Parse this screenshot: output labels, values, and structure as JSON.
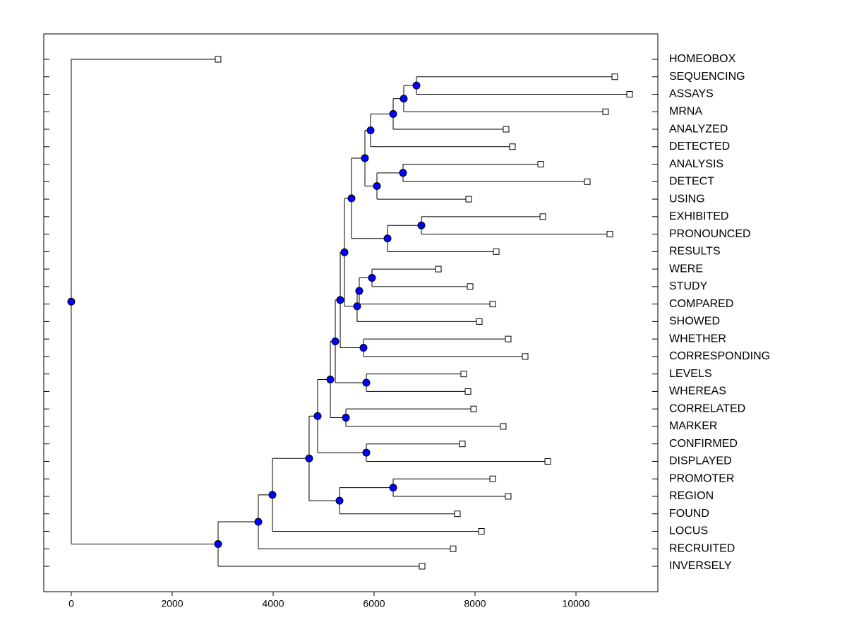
{
  "chart_data": {
    "type": "dendrogram",
    "xlim": [
      -545,
      11622
    ],
    "xticks": [
      0,
      2000,
      4000,
      6000,
      8000,
      10000
    ],
    "node_color": "#0000ff",
    "leaf_color": "#ffffff",
    "tree": {
      "height": 0,
      "children": [
        {
          "label": "HOMEOBOX",
          "height": 2909
        },
        {
          "height": 2909,
          "children": [
            {
              "height": 3706,
              "children": [
                {
                  "height": 3986,
                  "children": [
                    {
                      "height": 4713,
                      "children": [
                        {
                          "height": 4881,
                          "children": [
                            {
                              "height": 5133,
                              "children": [
                                {
                                  "height": 5231,
                                  "children": [
                                    {
                                      "height": 5329,
                                      "children": [
                                        {
                                          "height": 5413,
                                          "children": [
                                            {
                                              "height": 5552,
                                              "children": [
                                                {
                                                  "height": 5818,
                                                  "children": [
                                                    {
                                                      "height": 5930,
                                                      "children": [
                                                        {
                                                          "height": 6378,
                                                          "children": [
                                                            {
                                                              "height": 6587,
                                                              "children": [
                                                                {
                                                                  "height": 6839,
                                                                  "children": [
                                                                    {
                                                                      "label": "SEQUENCING",
                                                                      "height": 10769
                                                                    },
                                                                    {
                                                                      "label": "ASSAYS",
                                                                      "height": 11063
                                                                    }
                                                                  ]
                                                                },
                                                                {
                                                                  "label": "MRNA",
                                                                  "height": 10587
                                                                }
                                                              ]
                                                            },
                                                            {
                                                              "label": "ANALYZED",
                                                              "height": 8615
                                                            }
                                                          ]
                                                        },
                                                        {
                                                          "label": "DETECTED",
                                                          "height": 8741
                                                        }
                                                      ]
                                                    },
                                                    {
                                                      "height": 6056,
                                                      "children": [
                                                        {
                                                          "height": 6573,
                                                          "children": [
                                                            {
                                                              "label": "ANALYSIS",
                                                              "height": 9301
                                                            },
                                                            {
                                                              "label": "DETECT",
                                                              "height": 10224
                                                            }
                                                          ]
                                                        },
                                                        {
                                                          "label": "USING",
                                                          "height": 7874
                                                        }
                                                      ]
                                                    }
                                                  ]
                                                },
                                                {
                                                  "height": 6266,
                                                  "children": [
                                                    {
                                                      "height": 6937,
                                                      "children": [
                                                        {
                                                          "label": "EXHIBITED",
                                                          "height": 9343
                                                        },
                                                        {
                                                          "label": "PRONOUNCED",
                                                          "height": 10671
                                                        }
                                                      ]
                                                    },
                                                    {
                                                      "label": "RESULTS",
                                                      "height": 8420
                                                    }
                                                  ]
                                                }
                                              ]
                                            },
                                            {
                                              "height": 5664,
                                              "children": [
                                                {
                                                  "height": 5706,
                                                  "children": [
                                                    {
                                                      "height": 5958,
                                                      "children": [
                                                        {
                                                          "label": "WERE",
                                                          "height": 7273
                                                        },
                                                        {
                                                          "label": "STUDY",
                                                          "height": 7902
                                                        }
                                                      ]
                                                    },
                                                    {
                                                      "label": "COMPARED",
                                                      "height": 8350
                                                    }
                                                  ]
                                                },
                                                {
                                                  "label": "SHOWED",
                                                  "height": 8084
                                                }
                                              ]
                                            }
                                          ]
                                        },
                                        {
                                          "height": 5790,
                                          "children": [
                                            {
                                              "label": "WHETHER",
                                              "height": 8657
                                            },
                                            {
                                              "label": "CORRESPONDING",
                                              "height": 8993
                                            }
                                          ]
                                        }
                                      ]
                                    },
                                    {
                                      "height": 5846,
                                      "children": [
                                        {
                                          "label": "LEVELS",
                                          "height": 7776
                                        },
                                        {
                                          "label": "WHEREAS",
                                          "height": 7860
                                        }
                                      ]
                                    }
                                  ]
                                },
                                {
                                  "height": 5441,
                                  "children": [
                                    {
                                      "label": "CORRELATED",
                                      "height": 7972
                                    },
                                    {
                                      "label": "MARKER",
                                      "height": 8559
                                    }
                                  ]
                                }
                              ]
                            },
                            {
                              "height": 5846,
                              "children": [
                                {
                                  "label": "CONFIRMED",
                                  "height": 7748
                                },
                                {
                                  "label": "DISPLAYED",
                                  "height": 9441
                                }
                              ]
                            }
                          ]
                        },
                        {
                          "height": 5315,
                          "children": [
                            {
                              "height": 6378,
                              "children": [
                                {
                                  "label": "PROMOTER",
                                  "height": 8350
                                },
                                {
                                  "label": "REGION",
                                  "height": 8657
                                }
                              ]
                            },
                            {
                              "label": "FOUND",
                              "height": 7650
                            }
                          ]
                        }
                      ]
                    },
                    {
                      "label": "LOCUS",
                      "height": 8126
                    }
                  ]
                },
                {
                  "label": "RECRUITED",
                  "height": 7566
                }
              ]
            },
            {
              "label": "INVERSELY",
              "height": 6951
            }
          ]
        }
      ]
    }
  }
}
